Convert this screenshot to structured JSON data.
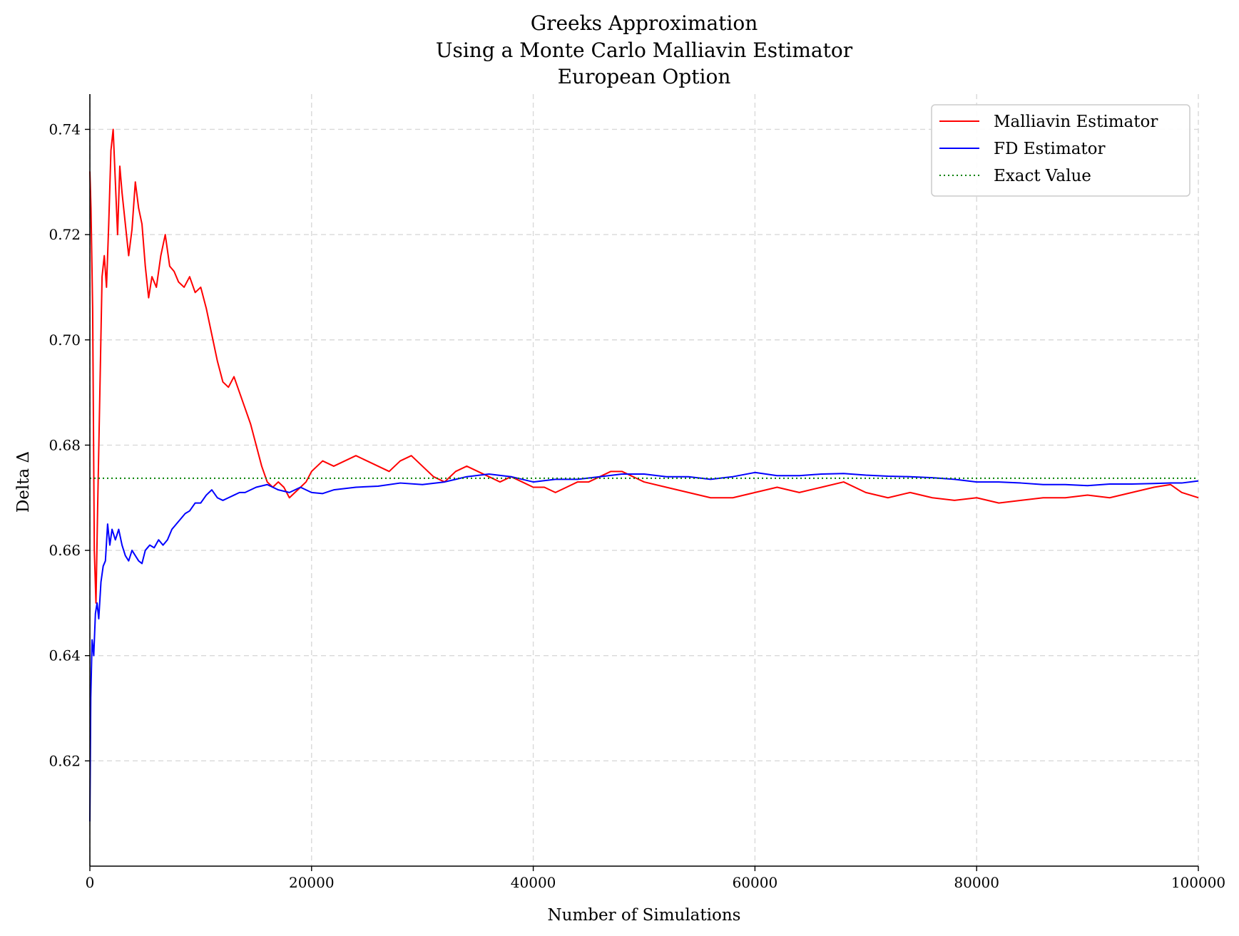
{
  "chart_data": {
    "type": "line",
    "title_lines": [
      "Greeks Approximation",
      "Using a Monte Carlo Malliavin Estimator",
      "European Option"
    ],
    "xlabel": "Number of Simulations",
    "ylabel": "Delta Δ",
    "xlim": [
      0,
      100000
    ],
    "ylim": [
      0.6,
      0.7467
    ],
    "xticks": [
      0,
      20000,
      40000,
      60000,
      80000,
      100000
    ],
    "xtick_labels": [
      "0",
      "20000",
      "40000",
      "60000",
      "80000",
      "100000"
    ],
    "yticks": [
      0.62,
      0.64,
      0.66,
      0.68,
      0.7,
      0.72,
      0.74
    ],
    "ytick_labels": [
      "0.62",
      "0.64",
      "0.66",
      "0.68",
      "0.70",
      "0.72",
      "0.74"
    ],
    "grid": true,
    "legend_position": "top-right",
    "series": [
      {
        "name": "Malliavin Estimator",
        "color": "#ff0000",
        "style": "solid",
        "x": [
          0,
          100,
          250,
          400,
          550,
          700,
          900,
          1100,
          1300,
          1500,
          1700,
          1900,
          2100,
          2300,
          2500,
          2700,
          2900,
          3200,
          3500,
          3800,
          4100,
          4400,
          4700,
          5000,
          5300,
          5600,
          6000,
          6400,
          6800,
          7200,
          7600,
          8000,
          8500,
          9000,
          9500,
          10000,
          10500,
          11000,
          11500,
          12000,
          12500,
          13000,
          13500,
          14000,
          14500,
          15000,
          15500,
          16000,
          16500,
          17000,
          17500,
          18000,
          18500,
          19000,
          19500,
          20000,
          21000,
          22000,
          23000,
          24000,
          25000,
          26000,
          27000,
          28000,
          29000,
          30000,
          31000,
          32000,
          33000,
          34000,
          35000,
          36000,
          37000,
          38000,
          39000,
          40000,
          41000,
          42000,
          43000,
          44000,
          45000,
          46000,
          47000,
          48000,
          49000,
          50000,
          52000,
          54000,
          56000,
          58000,
          60000,
          62000,
          64000,
          66000,
          68000,
          70000,
          72000,
          74000,
          76000,
          78000,
          80000,
          82000,
          84000,
          86000,
          88000,
          90000,
          92000,
          94000,
          96000,
          97500,
          98500,
          100000
        ],
        "y": [
          0.732,
          0.725,
          0.706,
          0.66,
          0.65,
          0.668,
          0.69,
          0.712,
          0.716,
          0.71,
          0.722,
          0.736,
          0.74,
          0.73,
          0.72,
          0.733,
          0.728,
          0.722,
          0.716,
          0.721,
          0.73,
          0.725,
          0.722,
          0.714,
          0.708,
          0.712,
          0.71,
          0.716,
          0.72,
          0.714,
          0.713,
          0.711,
          0.71,
          0.712,
          0.709,
          0.71,
          0.706,
          0.701,
          0.696,
          0.692,
          0.691,
          0.693,
          0.69,
          0.687,
          0.684,
          0.68,
          0.676,
          0.673,
          0.672,
          0.673,
          0.672,
          0.67,
          0.671,
          0.672,
          0.673,
          0.675,
          0.677,
          0.676,
          0.677,
          0.678,
          0.677,
          0.676,
          0.675,
          0.677,
          0.678,
          0.676,
          0.674,
          0.673,
          0.675,
          0.676,
          0.675,
          0.674,
          0.673,
          0.674,
          0.673,
          0.672,
          0.672,
          0.671,
          0.672,
          0.673,
          0.673,
          0.674,
          0.675,
          0.675,
          0.674,
          0.673,
          0.672,
          0.671,
          0.67,
          0.67,
          0.671,
          0.672,
          0.671,
          0.672,
          0.673,
          0.671,
          0.67,
          0.671,
          0.67,
          0.6695,
          0.67,
          0.669,
          0.6695,
          0.67,
          0.67,
          0.6705,
          0.67,
          0.671,
          0.672,
          0.6725,
          0.671,
          0.67
        ]
      },
      {
        "name": "FD Estimator",
        "color": "#0000ff",
        "style": "solid",
        "x": [
          0,
          80,
          200,
          350,
          500,
          650,
          800,
          1000,
          1200,
          1400,
          1600,
          1800,
          2000,
          2300,
          2600,
          2900,
          3200,
          3500,
          3800,
          4100,
          4400,
          4700,
          5000,
          5400,
          5800,
          6200,
          6600,
          7000,
          7400,
          7800,
          8200,
          8600,
          9000,
          9500,
          10000,
          10500,
          11000,
          11500,
          12000,
          12500,
          13000,
          13500,
          14000,
          15000,
          16000,
          17000,
          18000,
          19000,
          20000,
          21000,
          22000,
          24000,
          26000,
          28000,
          30000,
          32000,
          34000,
          36000,
          38000,
          40000,
          42000,
          44000,
          46000,
          48000,
          50000,
          52000,
          54000,
          56000,
          58000,
          60000,
          62000,
          64000,
          66000,
          68000,
          70000,
          72000,
          74000,
          76000,
          78000,
          80000,
          82000,
          84000,
          86000,
          88000,
          90000,
          92000,
          94000,
          96000,
          97500,
          98500,
          100000
        ],
        "y": [
          0.6085,
          0.632,
          0.643,
          0.64,
          0.648,
          0.65,
          0.647,
          0.654,
          0.657,
          0.658,
          0.665,
          0.661,
          0.664,
          0.662,
          0.664,
          0.661,
          0.659,
          0.658,
          0.66,
          0.659,
          0.658,
          0.6575,
          0.66,
          0.661,
          0.6605,
          0.662,
          0.661,
          0.662,
          0.664,
          0.665,
          0.666,
          0.667,
          0.6675,
          0.669,
          0.669,
          0.6705,
          0.6715,
          0.67,
          0.6695,
          0.67,
          0.6705,
          0.671,
          0.671,
          0.672,
          0.6725,
          0.6715,
          0.671,
          0.672,
          0.671,
          0.6708,
          0.6715,
          0.672,
          0.6722,
          0.6728,
          0.6725,
          0.673,
          0.674,
          0.6745,
          0.674,
          0.673,
          0.6735,
          0.6735,
          0.674,
          0.6745,
          0.6745,
          0.674,
          0.674,
          0.6735,
          0.674,
          0.6748,
          0.6742,
          0.6742,
          0.6745,
          0.6746,
          0.6743,
          0.6741,
          0.674,
          0.6738,
          0.6735,
          0.673,
          0.673,
          0.6728,
          0.6725,
          0.6725,
          0.6723,
          0.6726,
          0.6726,
          0.6727,
          0.6728,
          0.6728,
          0.6732
        ]
      },
      {
        "name": "Exact Value",
        "color": "#008000",
        "style": "dotted",
        "x": [
          0,
          100000
        ],
        "y": [
          0.6737,
          0.6737
        ]
      }
    ]
  }
}
